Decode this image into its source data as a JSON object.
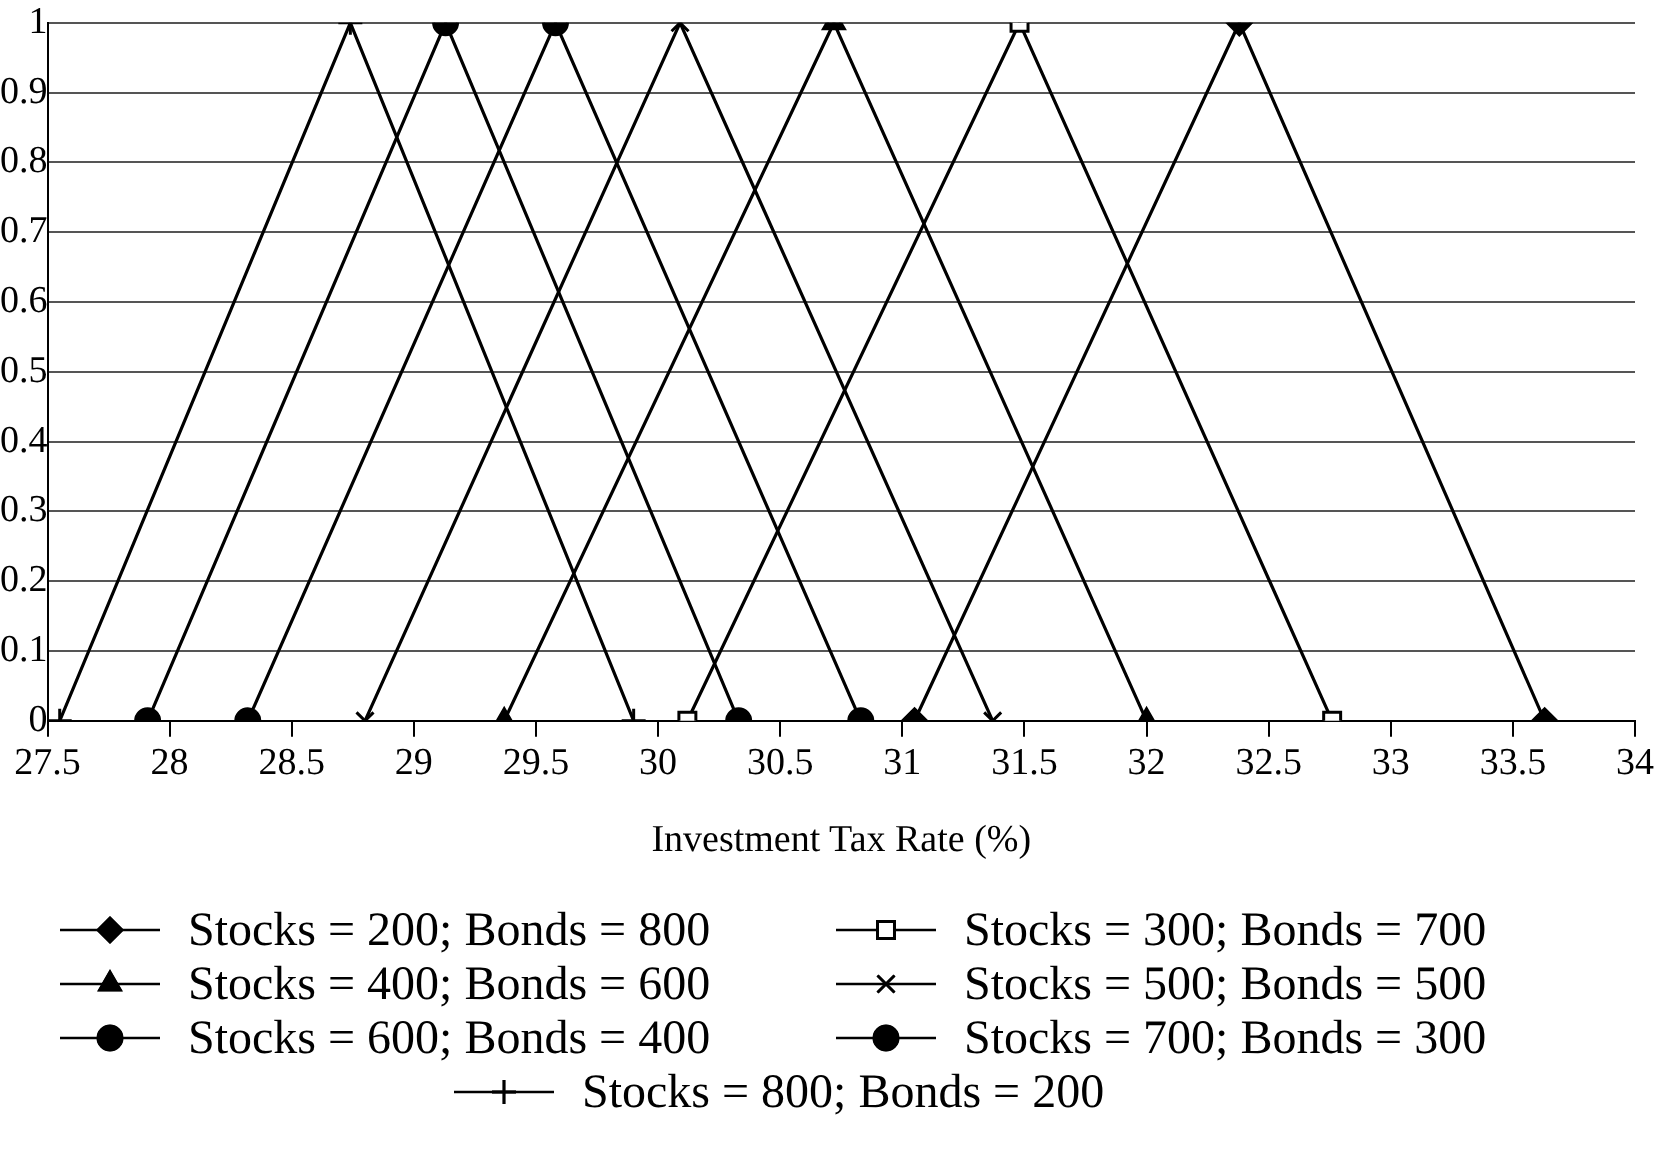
{
  "chart_data": {
    "type": "line",
    "xlabel": "Investment Tax Rate (%)",
    "xlim": [
      27.5,
      34
    ],
    "xticks": [
      27.5,
      28,
      28.5,
      29,
      29.5,
      30,
      30.5,
      31,
      31.5,
      32,
      32.5,
      33,
      33.5,
      34
    ],
    "ylim": [
      0,
      1
    ],
    "yticks": [
      0,
      0.1,
      0.2,
      0.3,
      0.4,
      0.5,
      0.6,
      0.7,
      0.8,
      0.9,
      1
    ],
    "grid": "y",
    "legend": "bottom",
    "series": [
      {
        "name": "Stocks = 200; Bonds = 800",
        "color": "#000000",
        "marker": "diamond",
        "x": [
          31.05,
          32.38,
          33.63
        ],
        "values": [
          0,
          1,
          0
        ]
      },
      {
        "name": "Stocks = 300; Bonds = 700",
        "color": "#000000",
        "marker": "square",
        "x": [
          30.12,
          31.48,
          32.76
        ],
        "values": [
          0,
          1,
          0
        ]
      },
      {
        "name": "Stocks = 400; Bonds = 600",
        "color": "#000000",
        "marker": "triangle",
        "x": [
          29.37,
          30.72,
          32.0
        ],
        "values": [
          0,
          1,
          0
        ]
      },
      {
        "name": "Stocks = 500; Bonds = 500",
        "color": "#000000",
        "marker": "cross",
        "x": [
          28.8,
          30.09,
          31.37
        ],
        "values": [
          0,
          1,
          0
        ]
      },
      {
        "name": "Stocks = 600; Bonds = 400",
        "color": "#000000",
        "marker": "circle",
        "x": [
          28.32,
          29.58,
          30.83
        ],
        "values": [
          0,
          1,
          0
        ]
      },
      {
        "name": "Stocks = 700; Bonds = 300",
        "color": "#000000",
        "marker": "circle",
        "x": [
          27.91,
          29.13,
          30.33
        ],
        "values": [
          0,
          1,
          0
        ]
      },
      {
        "name": "Stocks = 800; Bonds = 200",
        "color": "#000000",
        "marker": "plus",
        "x": [
          27.55,
          28.74,
          29.9
        ],
        "values": [
          0,
          1,
          0
        ]
      }
    ]
  }
}
